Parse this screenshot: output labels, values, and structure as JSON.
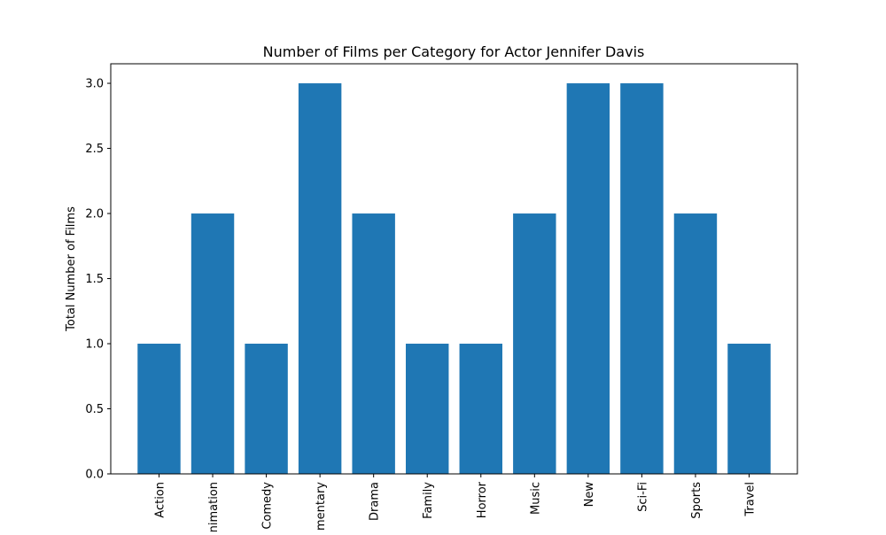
{
  "chart_data": {
    "type": "bar",
    "title": "Number of Films per Category for Actor Jennifer Davis",
    "xlabel": "",
    "ylabel": "Total Number of Films",
    "categories": [
      "Action",
      "Animation",
      "Comedy",
      "Documentary",
      "Drama",
      "Family",
      "Horror",
      "Music",
      "New",
      "Sci-Fi",
      "Sports",
      "Travel"
    ],
    "values": [
      1,
      2,
      1,
      3,
      2,
      1,
      1,
      2,
      3,
      3,
      2,
      1
    ],
    "ylim": [
      0,
      3.15
    ],
    "yticks": [
      0.0,
      0.5,
      1.0,
      1.5,
      2.0,
      2.5,
      3.0
    ],
    "ytick_labels": [
      "0.0",
      "0.5",
      "1.0",
      "1.5",
      "2.0",
      "2.5",
      "3.0"
    ],
    "grid": false,
    "colors": {
      "bar": "#1f77b4",
      "axis": "#000000",
      "background": "#ffffff"
    }
  }
}
